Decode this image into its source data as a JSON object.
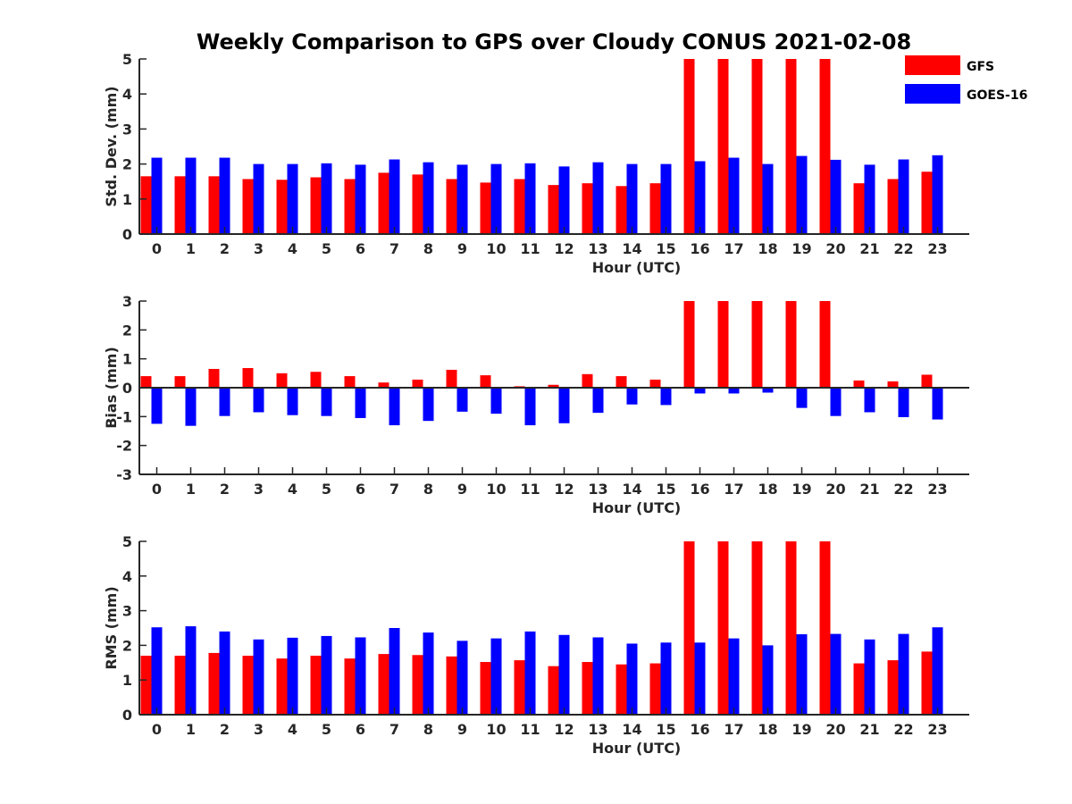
{
  "title": "Weekly Comparison to GPS over Cloudy CONUS 2021-02-08",
  "legend": {
    "placement": "top-right",
    "entries": [
      {
        "name": "GFS",
        "color": "#ff0000"
      },
      {
        "name": "GOES-16",
        "color": "#0000ff"
      }
    ]
  },
  "chart_data": [
    {
      "type": "bar",
      "title": "",
      "xlabel": "Hour (UTC)",
      "ylabel": "Std. Dev. (mm)",
      "ylim": [
        0,
        5
      ],
      "yticks": [
        0,
        1,
        2,
        3,
        4,
        5
      ],
      "grid": false,
      "categories": [
        "0",
        "1",
        "2",
        "3",
        "4",
        "5",
        "6",
        "7",
        "8",
        "9",
        "10",
        "11",
        "12",
        "13",
        "14",
        "15",
        "16",
        "17",
        "18",
        "19",
        "20",
        "21",
        "22",
        "23"
      ],
      "series": [
        {
          "name": "GFS",
          "color": "#ff0000",
          "values": [
            1.65,
            1.65,
            1.65,
            1.57,
            1.55,
            1.62,
            1.57,
            1.75,
            1.7,
            1.57,
            1.47,
            1.57,
            1.4,
            1.45,
            1.37,
            1.45,
            5,
            5,
            5,
            5,
            5,
            1.45,
            1.57,
            1.78
          ]
        },
        {
          "name": "GOES-16",
          "color": "#0000ff",
          "values": [
            2.18,
            2.18,
            2.18,
            2.0,
            2.0,
            2.02,
            1.98,
            2.13,
            2.05,
            1.98,
            2.0,
            2.02,
            1.93,
            2.05,
            2.0,
            2.0,
            2.08,
            2.18,
            2.0,
            2.23,
            2.12,
            1.98,
            2.13,
            2.25
          ]
        }
      ]
    },
    {
      "type": "bar",
      "title": "",
      "xlabel": "Hour (UTC)",
      "ylabel": "Bias (mm)",
      "ylim": [
        -3,
        3
      ],
      "yticks": [
        -3,
        -2,
        -1,
        0,
        1,
        2,
        3
      ],
      "grid": false,
      "categories": [
        "0",
        "1",
        "2",
        "3",
        "4",
        "5",
        "6",
        "7",
        "8",
        "9",
        "10",
        "11",
        "12",
        "13",
        "14",
        "15",
        "16",
        "17",
        "18",
        "19",
        "20",
        "21",
        "22",
        "23"
      ],
      "series": [
        {
          "name": "GFS",
          "color": "#ff0000",
          "values": [
            0.4,
            0.4,
            0.65,
            0.68,
            0.5,
            0.55,
            0.4,
            0.18,
            0.28,
            0.62,
            0.43,
            0.05,
            0.1,
            0.47,
            0.4,
            0.28,
            3,
            3,
            3,
            3,
            3,
            0.25,
            0.22,
            0.45
          ]
        },
        {
          "name": "GOES-16",
          "color": "#0000ff",
          "values": [
            -1.25,
            -1.32,
            -0.98,
            -0.85,
            -0.95,
            -0.98,
            -1.05,
            -1.3,
            -1.15,
            -0.83,
            -0.9,
            -1.3,
            -1.23,
            -0.87,
            -0.58,
            -0.6,
            -0.2,
            -0.2,
            -0.17,
            -0.7,
            -0.98,
            -0.85,
            -1.02,
            -1.1
          ]
        }
      ]
    },
    {
      "type": "bar",
      "title": "",
      "xlabel": "Hour (UTC)",
      "ylabel": "RMS (mm)",
      "ylim": [
        0,
        5
      ],
      "yticks": [
        0,
        1,
        2,
        3,
        4,
        5
      ],
      "grid": false,
      "categories": [
        "0",
        "1",
        "2",
        "3",
        "4",
        "5",
        "6",
        "7",
        "8",
        "9",
        "10",
        "11",
        "12",
        "13",
        "14",
        "15",
        "16",
        "17",
        "18",
        "19",
        "20",
        "21",
        "22",
        "23"
      ],
      "series": [
        {
          "name": "GFS",
          "color": "#ff0000",
          "values": [
            1.7,
            1.7,
            1.78,
            1.7,
            1.62,
            1.7,
            1.62,
            1.75,
            1.72,
            1.68,
            1.52,
            1.57,
            1.4,
            1.52,
            1.45,
            1.48,
            5,
            5,
            5,
            5,
            5,
            1.48,
            1.57,
            1.82
          ]
        },
        {
          "name": "GOES-16",
          "color": "#0000ff",
          "values": [
            2.52,
            2.55,
            2.4,
            2.17,
            2.22,
            2.27,
            2.23,
            2.5,
            2.37,
            2.13,
            2.2,
            2.4,
            2.3,
            2.23,
            2.05,
            2.08,
            2.08,
            2.2,
            2.0,
            2.32,
            2.33,
            2.17,
            2.33,
            2.52
          ]
        }
      ]
    }
  ]
}
